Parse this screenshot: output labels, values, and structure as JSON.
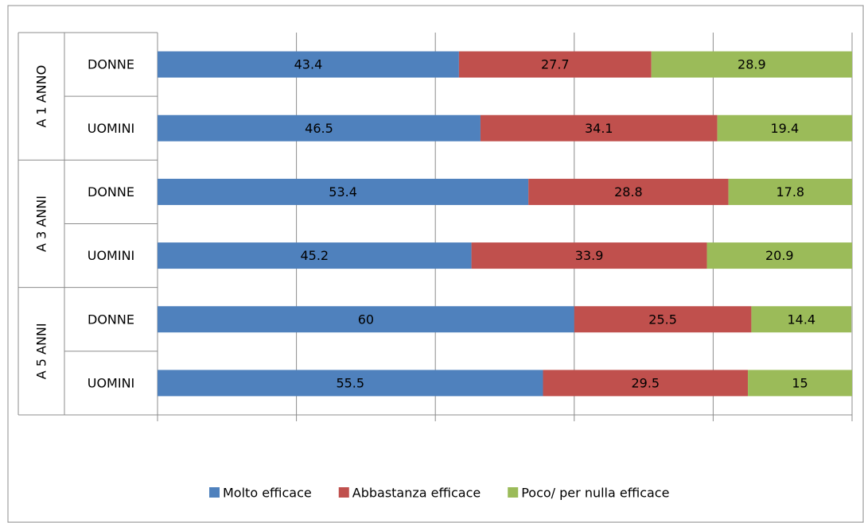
{
  "chart_data": {
    "type": "bar",
    "orientation": "horizontal",
    "stacked": true,
    "groups": [
      "A 1 ANNO",
      "A 3 ANNI",
      "A 5 ANNI"
    ],
    "categories": [
      "DONNE",
      "UOMINI",
      "DONNE",
      "UOMINI",
      "DONNE",
      "UOMINI"
    ],
    "category_group": [
      0,
      0,
      1,
      1,
      2,
      2
    ],
    "series": [
      {
        "name": "Molto efficace",
        "color": "#4f81bd",
        "values": [
          43.4,
          46.5,
          53.4,
          45.2,
          60,
          55.5
        ]
      },
      {
        "name": "Abbastanza efficace",
        "color": "#c0504d",
        "values": [
          27.7,
          34.1,
          28.8,
          33.9,
          25.5,
          29.5
        ]
      },
      {
        "name": "Poco/ per nulla efficace",
        "color": "#9bbb59",
        "values": [
          28.9,
          19.4,
          17.8,
          20.9,
          14.4,
          15
        ]
      }
    ],
    "xlim": [
      0,
      100
    ],
    "grid": true,
    "legend_position": "bottom",
    "title": "",
    "xlabel": "",
    "ylabel": ""
  }
}
